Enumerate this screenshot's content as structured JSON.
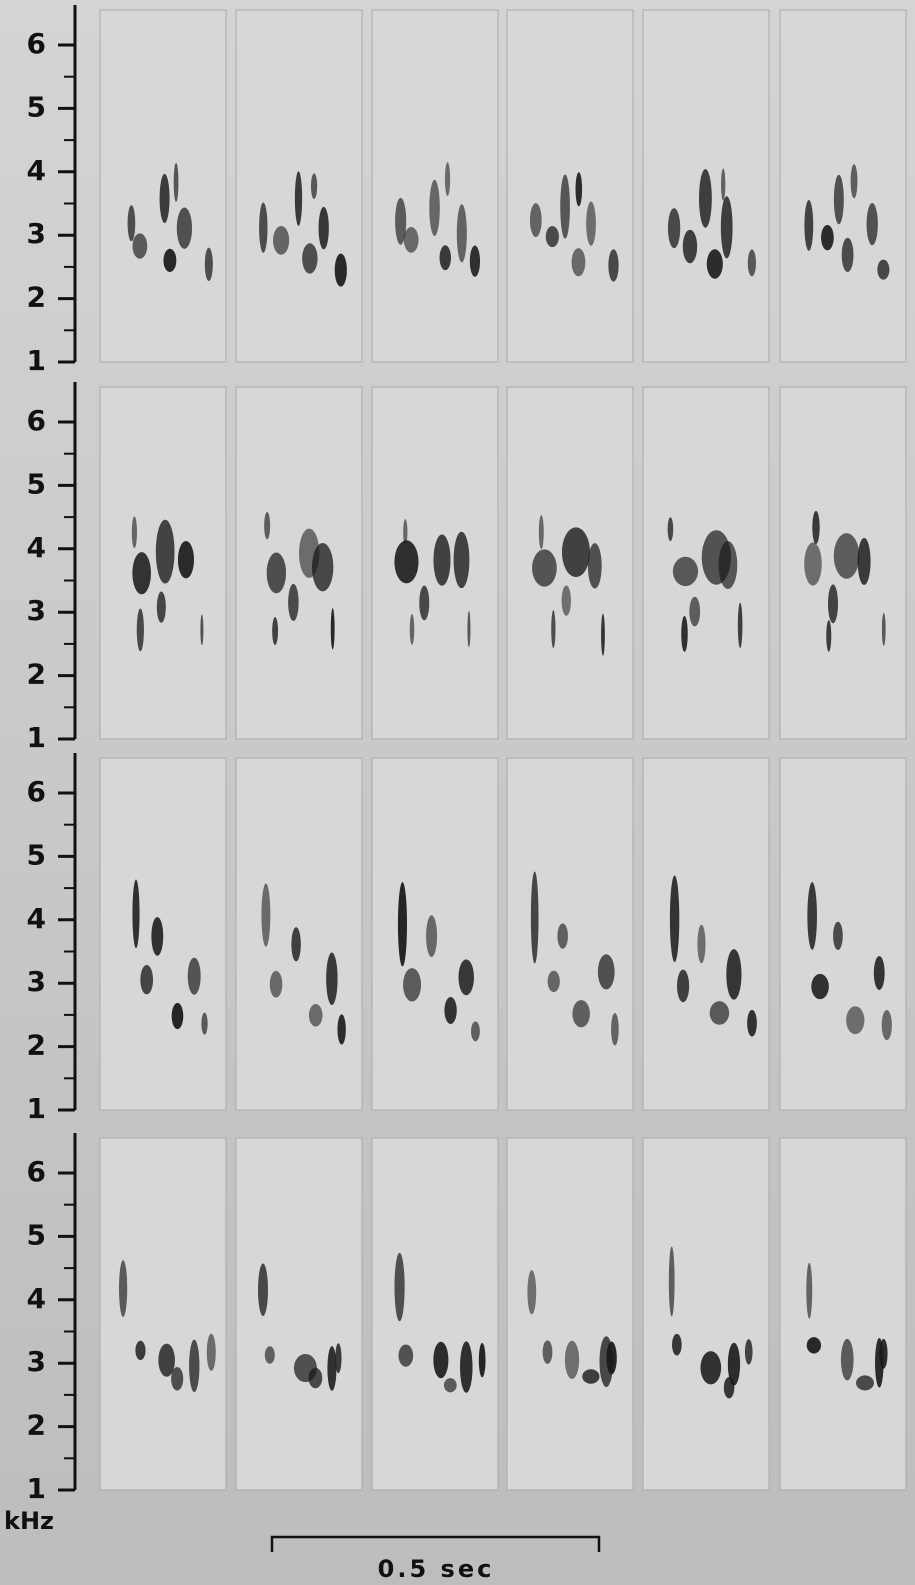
{
  "rows": [
    {
      "yticks": [
        1,
        2,
        3,
        4,
        5,
        6
      ]
    },
    {
      "yticks": [
        1,
        2,
        3,
        4,
        5,
        6
      ]
    },
    {
      "yticks": [
        1,
        2,
        3,
        4,
        5,
        6
      ]
    },
    {
      "yticks": [
        1,
        2,
        3,
        4,
        5,
        6
      ]
    }
  ],
  "y_unit": "kHz",
  "scale_bar": "0.5 sec"
}
